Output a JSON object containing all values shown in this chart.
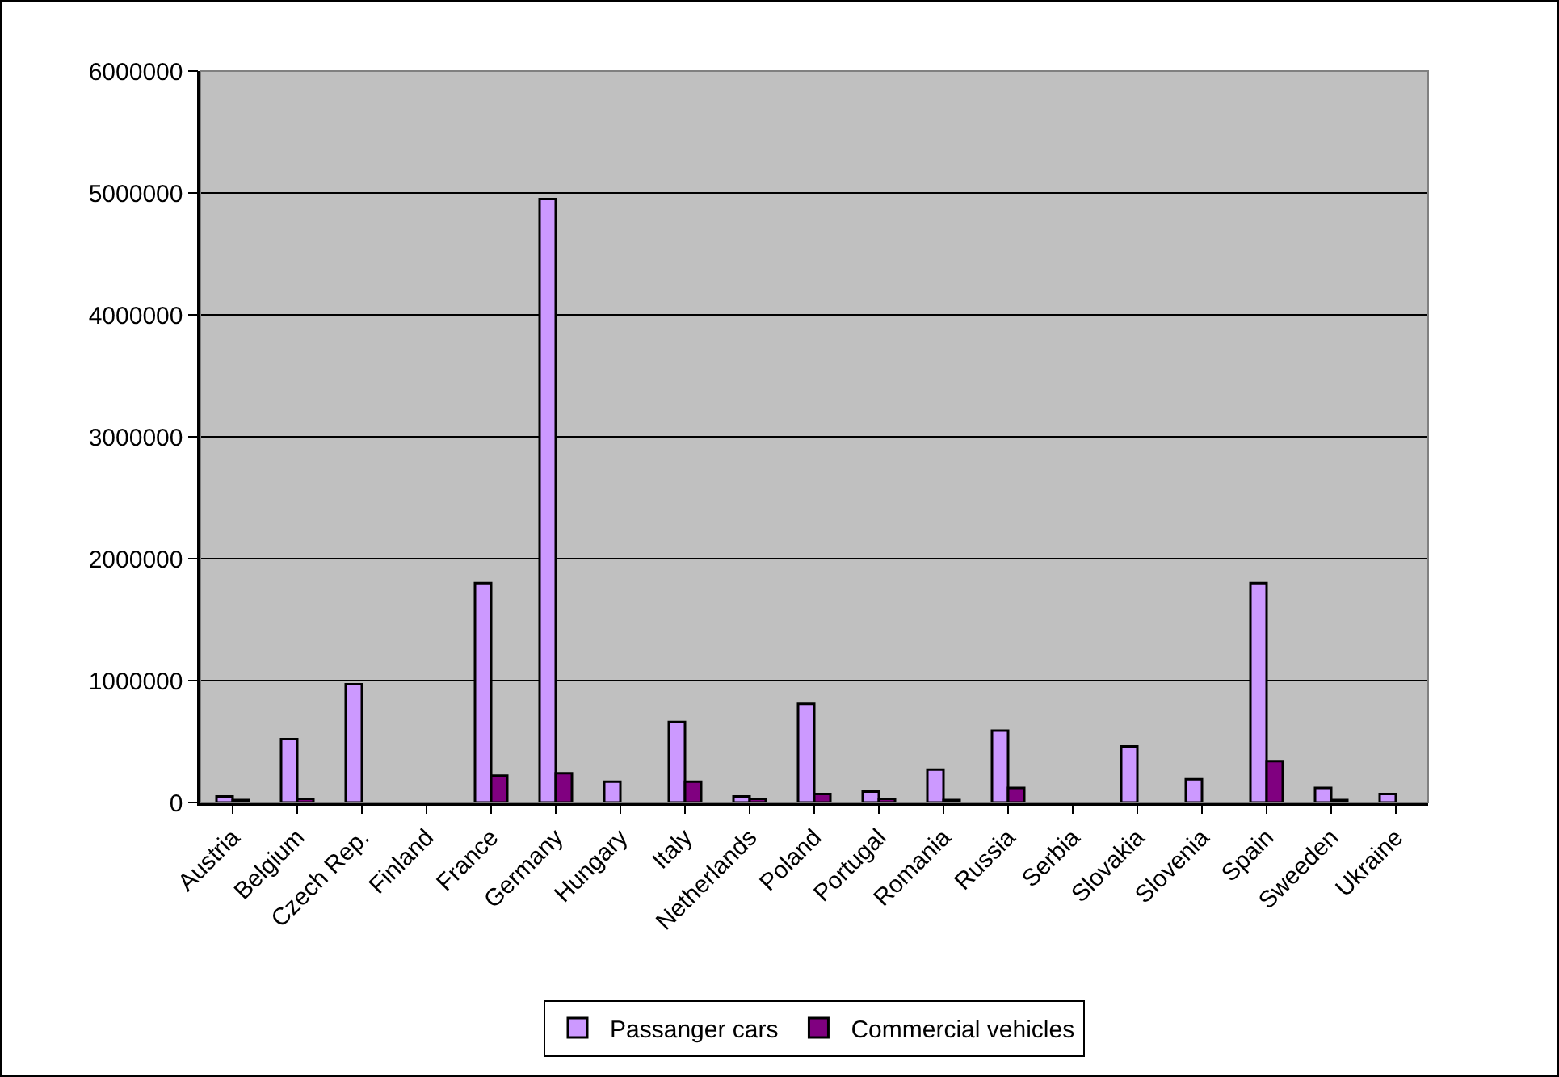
{
  "chart_data": {
    "type": "bar",
    "categories": [
      "Austria",
      "Belgium",
      "Czech Rep.",
      "Finland",
      "France",
      "Germany",
      "Hungary",
      "Italy",
      "Netherlands",
      "Poland",
      "Portugal",
      "Romania",
      "Russia",
      "Serbia",
      "Slovakia",
      "Slovenia",
      "Spain",
      "Sweeden",
      "Ukraine"
    ],
    "series": [
      {
        "name": "Passanger cars",
        "color": "#cc99ff",
        "values": [
          50000,
          520000,
          970000,
          null,
          1800000,
          4950000,
          170000,
          660000,
          50000,
          810000,
          90000,
          270000,
          590000,
          null,
          460000,
          190000,
          1800000,
          120000,
          70000
        ]
      },
      {
        "name": "Commercial vehicles",
        "color": "#800080",
        "values": [
          20000,
          30000,
          null,
          null,
          220000,
          240000,
          null,
          170000,
          30000,
          70000,
          30000,
          20000,
          120000,
          null,
          null,
          null,
          340000,
          20000,
          null
        ]
      }
    ],
    "ylim": [
      0,
      6000000
    ],
    "yticks": [
      0,
      1000000,
      2000000,
      3000000,
      4000000,
      5000000,
      6000000
    ],
    "grid": "y",
    "legend": "bottom"
  }
}
